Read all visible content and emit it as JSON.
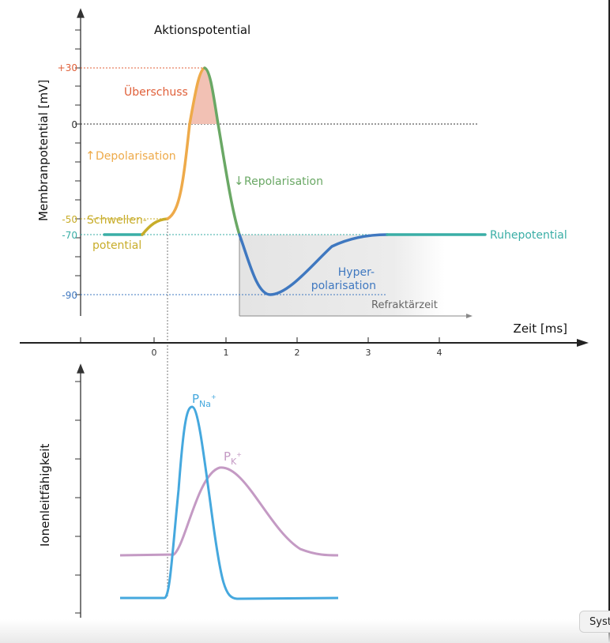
{
  "title": "Aktionspotential",
  "y_label_top": "Membranpotential [mV]",
  "y_label_bottom": "Ionenleitfähigkeit",
  "x_label": "Zeit [ms]",
  "x_ticks": [
    "0",
    "1",
    "2",
    "3",
    "4"
  ],
  "y_ticks": {
    "p30": "+30",
    "zero": "0",
    "m50": "-50",
    "m70": "-70",
    "m90": "-90"
  },
  "labels": {
    "overshoot": "Überschuss",
    "depolarisation": "Depolarisation",
    "repolarisation": "Repolarisation",
    "threshold_1": "Schwellen-",
    "threshold_2": "potential",
    "resting": "Ruhepotential",
    "hyper_1": "Hyper-",
    "hyper_2": "polarisation",
    "refractory": "Refraktärzeit",
    "pna": "P",
    "pna_sub": "Na",
    "pna_sup": "+",
    "pk": "P",
    "pk_sub": "K",
    "pk_sup": "+",
    "arrow_up": "↑",
    "arrow_down": "↓"
  },
  "colors": {
    "overshoot": "#e0603a",
    "depolarisation": "#eeaa4a",
    "repolarisation": "#6aa865",
    "threshold": "#c8ad2a",
    "resting": "#3aaea6",
    "hyper": "#3f78c0",
    "na": "#45a8de",
    "k": "#c49ac4"
  },
  "system_button": "Syst"
}
